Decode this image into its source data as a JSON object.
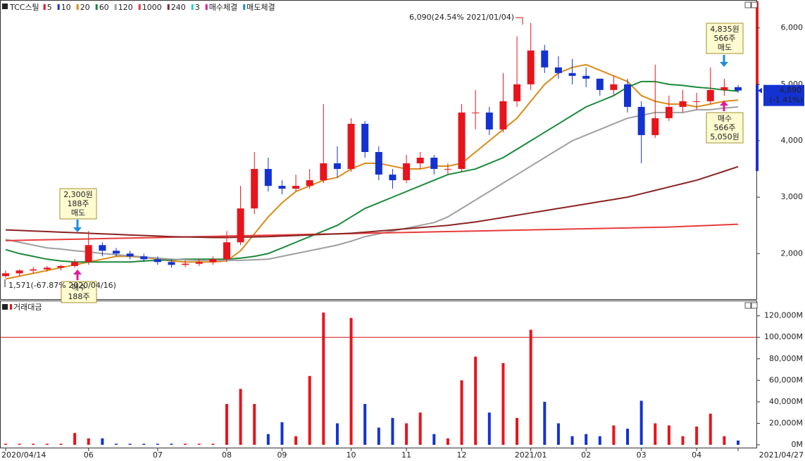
{
  "chart_data": [
    {
      "type": "candlestick",
      "title": "TCC스틸",
      "open": [
        1600,
        1650,
        1700,
        1720,
        1750,
        1780,
        1850,
        2150,
        2050,
        2000,
        1950,
        1900,
        1850,
        1800,
        1820,
        1850,
        1900,
        2200,
        2800,
        3500,
        3200,
        3150,
        3200,
        3300,
        3600,
        3500,
        4300,
        3800,
        3400,
        3300,
        3600,
        3700,
        3500,
        3500,
        4500,
        4500,
        4200,
        4700,
        5000,
        5600,
        5300,
        5200,
        5150,
        5100,
        4900,
        5000,
        4600,
        4100,
        4400,
        4600,
        4700,
        4700,
        4900,
        4950
      ],
      "high": [
        1700,
        1720,
        1760,
        1780,
        1800,
        1900,
        2400,
        2200,
        2100,
        2050,
        2000,
        1950,
        1900,
        1880,
        1900,
        1950,
        2400,
        3200,
        3800,
        3700,
        3300,
        3400,
        3500,
        4650,
        3900,
        4400,
        4350,
        3900,
        3500,
        3750,
        3800,
        3750,
        3600,
        4650,
        4900,
        4600,
        5200,
        5850,
        6090,
        5700,
        5500,
        5450,
        5300,
        5100,
        5150,
        5100,
        4700,
        5350,
        4800,
        4900,
        4850,
        5300,
        5100,
        4990
      ],
      "low": [
        1571,
        1600,
        1650,
        1680,
        1700,
        1750,
        1800,
        1950,
        1950,
        1900,
        1850,
        1800,
        1750,
        1760,
        1780,
        1800,
        1850,
        2150,
        2700,
        3100,
        3050,
        3100,
        3150,
        3250,
        3350,
        3450,
        3700,
        3300,
        3150,
        3250,
        3500,
        3400,
        3400,
        3450,
        4200,
        4100,
        4150,
        4600,
        4900,
        5200,
        5100,
        5000,
        4950,
        4800,
        4800,
        4500,
        3600,
        4050,
        4350,
        4500,
        4550,
        4650,
        4800,
        4850
      ],
      "close": [
        1650,
        1700,
        1720,
        1750,
        1780,
        1850,
        2150,
        2050,
        2000,
        1950,
        1900,
        1850,
        1800,
        1820,
        1850,
        1900,
        2200,
        2800,
        3500,
        3200,
        3150,
        3200,
        3300,
        3600,
        3500,
        4300,
        3800,
        3400,
        3300,
        3600,
        3700,
        3500,
        3500,
        4500,
        4500,
        4200,
        4700,
        5000,
        5600,
        5300,
        5200,
        5150,
        5100,
        4900,
        5000,
        4600,
        4100,
        4400,
        4600,
        4700,
        4700,
        4900,
        4950,
        4890
      ],
      "up_color": "#e8141c",
      "down_color": "#1432d2",
      "ylim": [
        1230,
        6470
      ],
      "yticks": [
        {
          "value": 2000,
          "label": "2,000"
        },
        {
          "value": 3000,
          "label": "3,000"
        },
        {
          "value": 4000,
          "label": "4,000"
        },
        {
          "value": 5000,
          "label": "5,000"
        },
        {
          "value": 6000,
          "label": "6,000"
        }
      ],
      "series": [
        {
          "name": "5",
          "color": "#e8141c"
        },
        {
          "name": "10",
          "color": "#1e32dc"
        },
        {
          "name": "20",
          "color": "#d98c1a",
          "values": [
            1550,
            1600,
            1650,
            1700,
            1750,
            1800,
            1850,
            1900,
            1950,
            1950,
            1930,
            1900,
            1870,
            1850,
            1850,
            1850,
            1870,
            2050,
            2350,
            2650,
            2900,
            3100,
            3200,
            3300,
            3350,
            3500,
            3600,
            3600,
            3550,
            3500,
            3500,
            3550,
            3550,
            3600,
            3800,
            4000,
            4200,
            4400,
            4700,
            5000,
            5200,
            5300,
            5350,
            5250,
            5150,
            5050,
            4800,
            4700,
            4650,
            4650,
            4600,
            4650,
            4700,
            4720
          ]
        },
        {
          "name": "60",
          "color": "#1a8a3a",
          "values": [
            2070,
            2000,
            1950,
            1900,
            1870,
            1850,
            1850,
            1850,
            1850,
            1850,
            1870,
            1880,
            1890,
            1900,
            1900,
            1900,
            1900,
            1920,
            1950,
            2000,
            2100,
            2200,
            2300,
            2400,
            2500,
            2650,
            2800,
            2900,
            3000,
            3100,
            3200,
            3300,
            3400,
            3450,
            3500,
            3600,
            3700,
            3850,
            4000,
            4150,
            4300,
            4450,
            4600,
            4700,
            4800,
            4950,
            5050,
            5050,
            5000,
            4980,
            4950,
            4930,
            4900,
            4880
          ]
        },
        {
          "name": "120",
          "color": "#a0a0a0",
          "values": [
            2250,
            2200,
            2150,
            2100,
            2080,
            2050,
            2030,
            2000,
            1980,
            1960,
            1940,
            1920,
            1900,
            1890,
            1880,
            1880,
            1880,
            1880,
            1890,
            1900,
            1950,
            2000,
            2050,
            2100,
            2150,
            2220,
            2300,
            2350,
            2400,
            2450,
            2500,
            2550,
            2650,
            2800,
            2950,
            3100,
            3250,
            3400,
            3550,
            3700,
            3850,
            4000,
            4100,
            4200,
            4300,
            4400,
            4450,
            4500,
            4500,
            4500,
            4550,
            4550,
            4580,
            4600
          ]
        },
        {
          "name": "1000",
          "color": "#e83c3c",
          "values": [
            2230,
            2235,
            2240,
            2245,
            2250,
            2255,
            2260,
            2265,
            2270,
            2275,
            2280,
            2285,
            2290,
            2295,
            2300,
            2305,
            2310,
            2315,
            2320,
            2325,
            2330,
            2335,
            2340,
            2345,
            2350,
            2355,
            2360,
            2365,
            2370,
            2375,
            2380,
            2385,
            2390,
            2395,
            2400,
            2405,
            2410,
            2415,
            2420,
            2425,
            2430,
            2435,
            2440,
            2445,
            2450,
            2455,
            2460,
            2465,
            2470,
            2480,
            2490,
            2500,
            2510,
            2520
          ]
        },
        {
          "name": "240",
          "color": "#8b2323",
          "values": [
            2420,
            2410,
            2400,
            2390,
            2380,
            2370,
            2360,
            2350,
            2340,
            2330,
            2320,
            2310,
            2300,
            2295,
            2290,
            2285,
            2285,
            2290,
            2295,
            2300,
            2310,
            2320,
            2330,
            2340,
            2350,
            2360,
            2380,
            2400,
            2420,
            2440,
            2460,
            2480,
            2500,
            2530,
            2560,
            2600,
            2640,
            2680,
            2720,
            2760,
            2800,
            2840,
            2880,
            2920,
            2960,
            3000,
            3060,
            3120,
            3180,
            3240,
            3300,
            3380,
            3460,
            3540
          ]
        },
        {
          "name": "3",
          "color": "#2ad2d2"
        }
      ],
      "signals": [
        {
          "name": "매수체결",
          "color": "#e0189c"
        },
        {
          "name": "매도체결",
          "color": "#1e8ce0"
        }
      ],
      "annotations": [
        {
          "lines": [
            "6,090(24.54% 2021/01/04)"
          ]
        },
        {
          "lines": [
            "2,300원",
            "188주",
            "매도"
          ]
        },
        {
          "lines": [
            "1,571(-67.87% 2020/04/16)"
          ]
        },
        {
          "lines": [
            "매수",
            "188주"
          ]
        },
        {
          "lines": [
            "4,835원",
            "566주",
            "매도"
          ]
        },
        {
          "lines": [
            "매수",
            "566주",
            "5,050원"
          ]
        }
      ],
      "last_price": {
        "value": 4890,
        "label": "4,890",
        "change": "(-1.41%)"
      }
    },
    {
      "type": "bar",
      "title": "거래대금",
      "color": "#e8141c",
      "categories": [
        "2020/04/14",
        null,
        null,
        null,
        null,
        null,
        "06",
        null,
        null,
        null,
        null,
        "07",
        null,
        null,
        null,
        null,
        "08",
        null,
        null,
        null,
        "09",
        null,
        null,
        null,
        null,
        "10",
        null,
        null,
        null,
        "11",
        null,
        null,
        null,
        "12",
        null,
        null,
        null,
        null,
        "2021/01",
        null,
        null,
        null,
        "02",
        null,
        null,
        null,
        "03",
        null,
        null,
        null,
        "04",
        null,
        null,
        "2021/04/27"
      ],
      "values": [
        1000,
        1000,
        1000,
        1000,
        1000,
        11000,
        6000,
        6000,
        1000,
        1000,
        1000,
        1000,
        1000,
        1000,
        1000,
        1000,
        38000,
        52000,
        38000,
        10000,
        21000,
        8000,
        64000,
        123000,
        20000,
        118000,
        38000,
        16000,
        25000,
        20000,
        30000,
        10000,
        6000,
        60000,
        82000,
        30000,
        76000,
        25000,
        107000,
        40000,
        20000,
        8000,
        10000,
        8000,
        18000,
        15000,
        41000,
        20000,
        18000,
        8000,
        17000,
        29000,
        8000,
        4000
      ],
      "ylim": [
        0,
        127000
      ],
      "yticks": [
        {
          "value": 0,
          "label": "0M"
        },
        {
          "value": 20000,
          "label": "20,000M"
        },
        {
          "value": 40000,
          "label": "40,000M"
        },
        {
          "value": 60000,
          "label": "60,000M"
        },
        {
          "value": 80000,
          "label": "80,000M"
        },
        {
          "value": 100000,
          "label": "100,000M"
        },
        {
          "value": 120000,
          "label": "120,000M"
        }
      ],
      "reference_line": 100000,
      "reference_color": "#d01010"
    }
  ]
}
